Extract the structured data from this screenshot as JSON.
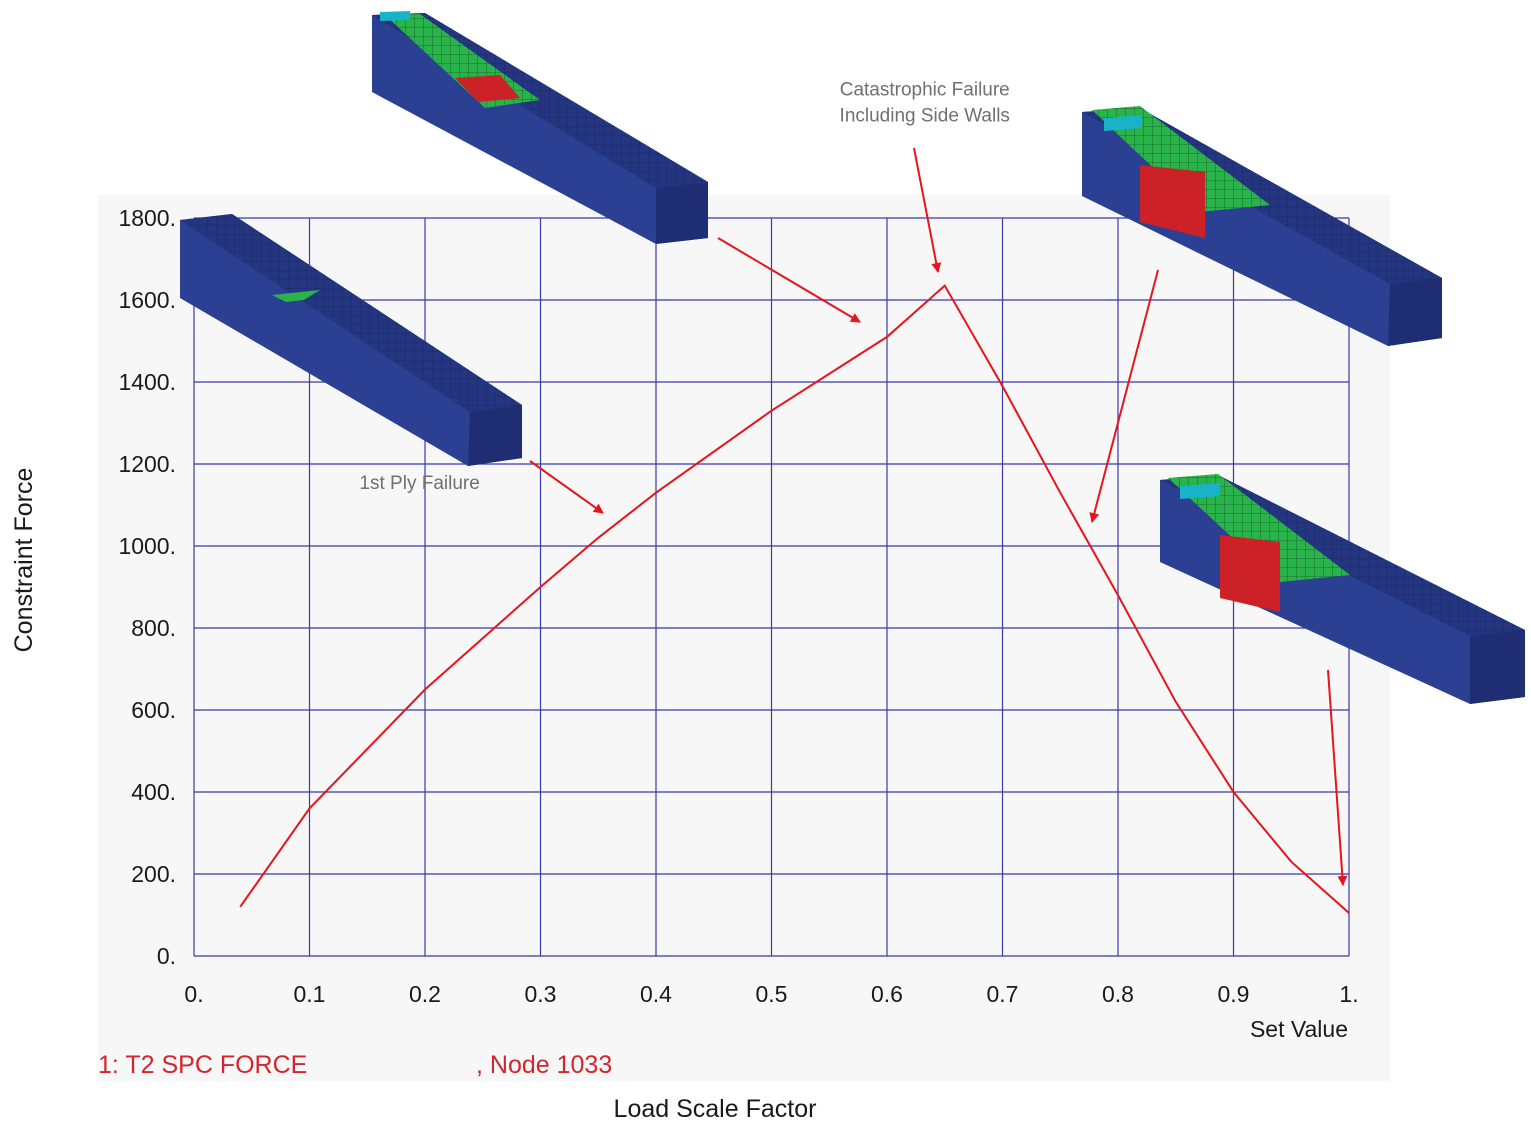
{
  "chart_data": {
    "type": "line",
    "xlabel": "Load Scale Factor",
    "ylabel": "Constraint Force",
    "x_axis_caption": "Set Value",
    "xlim": [
      0,
      1
    ],
    "ylim": [
      0,
      1800
    ],
    "x_ticks": [
      "0.",
      "0.1",
      "0.2",
      "0.3",
      "0.4",
      "0.5",
      "0.6",
      "0.7",
      "0.8",
      "0.9",
      "1."
    ],
    "y_ticks": [
      "0.",
      "200.",
      "400.",
      "600.",
      "800.",
      "1000.",
      "1200.",
      "1400.",
      "1600.",
      "1800."
    ],
    "grid": true,
    "legend": {
      "series_label": "1: T2 SPC FORCE",
      "node_label": ", Node 1033"
    },
    "series": [
      {
        "color": "#e8141c",
        "x": [
          0.04,
          0.1,
          0.2,
          0.3,
          0.35,
          0.4,
          0.5,
          0.6,
          0.65,
          0.7,
          0.75,
          0.8,
          0.85,
          0.9,
          0.95,
          1.0
        ],
        "y": [
          120,
          360,
          650,
          900,
          1020,
          1130,
          1330,
          1510,
          1635,
          1390,
          1130,
          880,
          620,
          400,
          230,
          105
        ]
      }
    ],
    "annotations": [
      {
        "text": "1st Ply Failure",
        "x": 0.36,
        "y": 1080
      },
      {
        "text": "Catastrophic Failure",
        "x": 0.65,
        "y": 1635
      },
      {
        "text": "Including Side Walls",
        "x": 0.65,
        "y": 1635
      }
    ]
  },
  "colors": {
    "curve": "#e8141c",
    "grid": "#3a3aa8",
    "beam_body": "#2b3f93",
    "beam_dark": "#1f2e72",
    "beam_mesh": "#1a2466",
    "green": "#29b34a",
    "red": "#cc2127",
    "cyan": "#19b3c9",
    "orange": "#d9923a"
  }
}
